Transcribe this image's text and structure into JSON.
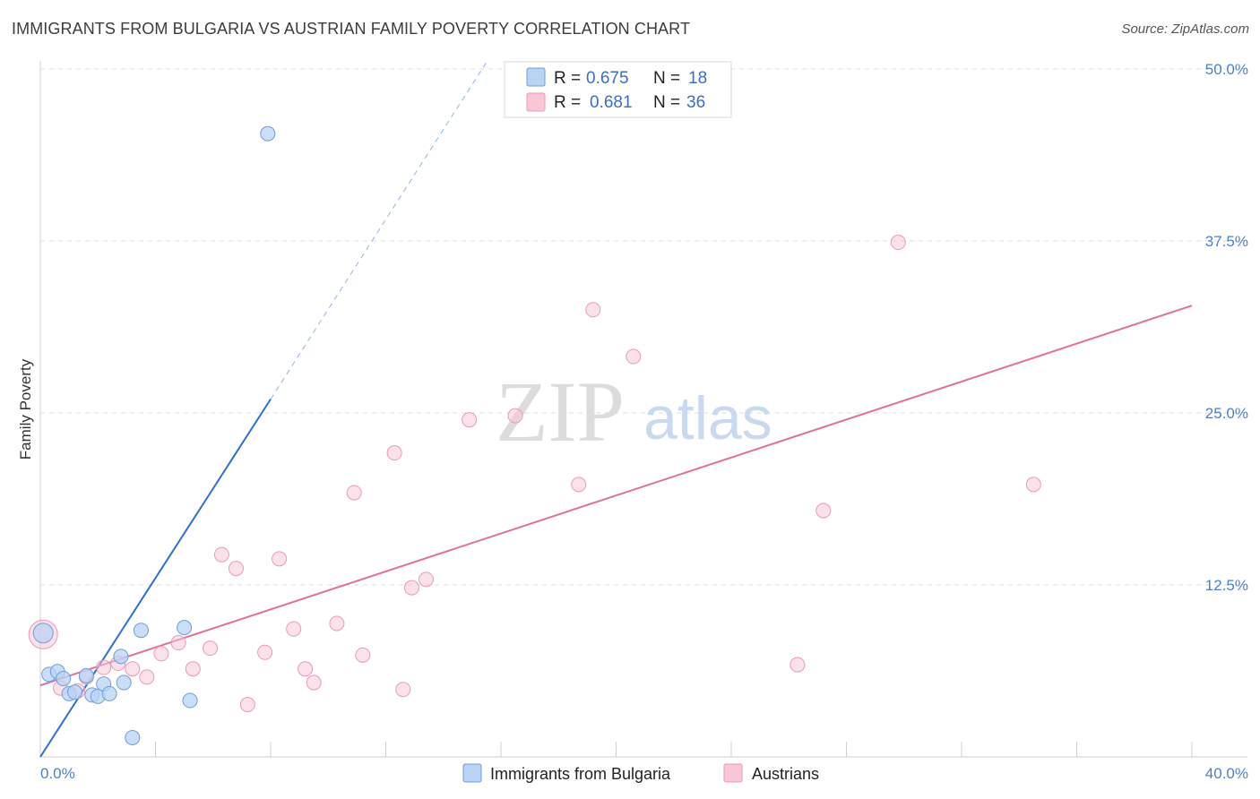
{
  "header": {
    "title": "IMMIGRANTS FROM BULGARIA VS AUSTRIAN FAMILY POVERTY CORRELATION CHART",
    "source": "Source: ZipAtlas.com"
  },
  "watermark": {
    "part1": "ZIP",
    "part2": "atlas"
  },
  "legend": {
    "rows": [
      {
        "r_label": "R = ",
        "r_value": "0.675",
        "n_label": "N = ",
        "n_value": "18"
      },
      {
        "r_label": "R = ",
        "r_value": "0.681",
        "n_label": "N = ",
        "n_value": "36"
      }
    ]
  },
  "bottom_legend": {
    "items": [
      {
        "label": "Immigrants from Bulgaria"
      },
      {
        "label": "Austrians"
      }
    ]
  },
  "colors": {
    "blue_fill": "#b9d3f5",
    "blue_stroke": "#6e9ee0",
    "blue_line": "#2d6fca",
    "pink_fill": "#f8c6d6",
    "pink_stroke": "#ea9ab4",
    "pink_line": "#e0719a",
    "grid": "#dddddd",
    "tick_text": "#4f7fc8"
  },
  "chart_data": {
    "type": "scatter",
    "title": "IMMIGRANTS FROM BULGARIA VS AUSTRIAN FAMILY POVERTY CORRELATION CHART",
    "xlabel": "",
    "ylabel": "Family Poverty",
    "xlim": [
      0,
      40
    ],
    "ylim": [
      0,
      50
    ],
    "x_tick_labels": [
      "0.0%",
      "40.0%"
    ],
    "y_ticks": [
      12.5,
      25.0,
      37.5,
      50.0
    ],
    "y_tick_labels": [
      "12.5%",
      "25.0%",
      "37.5%",
      "50.0%"
    ],
    "grid": true,
    "legend_position": "top-center",
    "series": [
      {
        "name": "Immigrants from Bulgaria",
        "color": "blue",
        "r": 0.675,
        "n": 18,
        "points": [
          [
            0.1,
            9.0
          ],
          [
            0.3,
            6.0
          ],
          [
            0.6,
            6.2
          ],
          [
            0.8,
            5.7
          ],
          [
            1.0,
            4.6
          ],
          [
            1.2,
            4.7
          ],
          [
            1.6,
            5.9
          ],
          [
            1.8,
            4.5
          ],
          [
            2.0,
            4.4
          ],
          [
            2.2,
            5.3
          ],
          [
            2.4,
            4.6
          ],
          [
            2.8,
            7.3
          ],
          [
            2.9,
            5.4
          ],
          [
            3.2,
            1.4
          ],
          [
            3.5,
            9.2
          ],
          [
            5.0,
            9.4
          ],
          [
            5.2,
            4.1
          ],
          [
            7.9,
            45.3
          ]
        ],
        "trend": {
          "x0": 0.0,
          "y0": 0.0,
          "x1": 8.0,
          "y1": 26.0,
          "dashed_to_x": 15.5,
          "dashed_to_y": 50.5
        }
      },
      {
        "name": "Austrians",
        "color": "pink",
        "r": 0.681,
        "n": 36,
        "points": [
          [
            0.1,
            8.9
          ],
          [
            0.7,
            5.0
          ],
          [
            1.3,
            4.8
          ],
          [
            1.6,
            5.8
          ],
          [
            2.2,
            6.5
          ],
          [
            2.7,
            6.8
          ],
          [
            3.2,
            6.4
          ],
          [
            3.7,
            5.8
          ],
          [
            4.2,
            7.5
          ],
          [
            4.8,
            8.3
          ],
          [
            5.3,
            6.4
          ],
          [
            5.9,
            7.9
          ],
          [
            6.3,
            14.7
          ],
          [
            6.8,
            13.7
          ],
          [
            7.2,
            3.8
          ],
          [
            7.8,
            7.6
          ],
          [
            8.3,
            14.4
          ],
          [
            8.8,
            9.3
          ],
          [
            9.2,
            6.4
          ],
          [
            9.5,
            5.4
          ],
          [
            10.3,
            9.7
          ],
          [
            10.9,
            19.2
          ],
          [
            11.2,
            7.4
          ],
          [
            12.3,
            22.1
          ],
          [
            12.6,
            4.9
          ],
          [
            12.9,
            12.3
          ],
          [
            13.4,
            12.9
          ],
          [
            14.9,
            24.5
          ],
          [
            16.5,
            24.8
          ],
          [
            18.7,
            19.8
          ],
          [
            19.2,
            32.5
          ],
          [
            20.6,
            29.1
          ],
          [
            26.3,
            6.7
          ],
          [
            27.2,
            17.9
          ],
          [
            29.8,
            37.4
          ],
          [
            34.5,
            19.8
          ]
        ],
        "trend": {
          "x0": 0.0,
          "y0": 5.2,
          "x1": 40.0,
          "y1": 32.8
        }
      }
    ]
  }
}
